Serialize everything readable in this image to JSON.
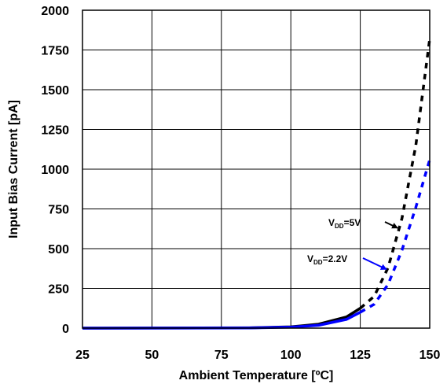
{
  "chart_data": {
    "type": "line",
    "title": "",
    "xlabel": "Ambient Temperature [ºC]",
    "ylabel": "Input Bias Current [pA]",
    "xlim": [
      25,
      150
    ],
    "ylim": [
      0,
      2000
    ],
    "xticks": [
      25,
      50,
      75,
      100,
      125,
      150
    ],
    "yticks": [
      0,
      250,
      500,
      750,
      1000,
      1250,
      1500,
      1750,
      2000
    ],
    "grid": true,
    "legend": "none",
    "series": [
      {
        "name": "VDD=5V",
        "color": "#000000",
        "measured": {
          "x": [
            25,
            85,
            100,
            110,
            120,
            125
          ],
          "y": [
            0,
            2,
            8,
            25,
            70,
            125
          ]
        },
        "extrapolated": {
          "x": [
            125,
            130,
            135,
            140,
            145,
            150
          ],
          "y": [
            125,
            200,
            380,
            690,
            1150,
            1820
          ]
        }
      },
      {
        "name": "VDD=2.2V",
        "color": "#0000ff",
        "measured": {
          "x": [
            25,
            85,
            100,
            110,
            120,
            125
          ],
          "y": [
            0,
            1,
            6,
            18,
            55,
            100
          ]
        },
        "extrapolated": {
          "x": [
            125,
            130,
            135,
            140,
            145,
            150
          ],
          "y": [
            100,
            150,
            275,
            490,
            760,
            1060
          ]
        }
      }
    ],
    "annotations": [
      {
        "main": "V",
        "sub": "DD",
        "tail": "=5V",
        "series": 0,
        "point_x": 139,
        "point_y": 640
      },
      {
        "main": "V",
        "sub": "DD",
        "tail": "=2.2V",
        "series": 1,
        "point_x": 135,
        "point_y": 380
      }
    ]
  }
}
